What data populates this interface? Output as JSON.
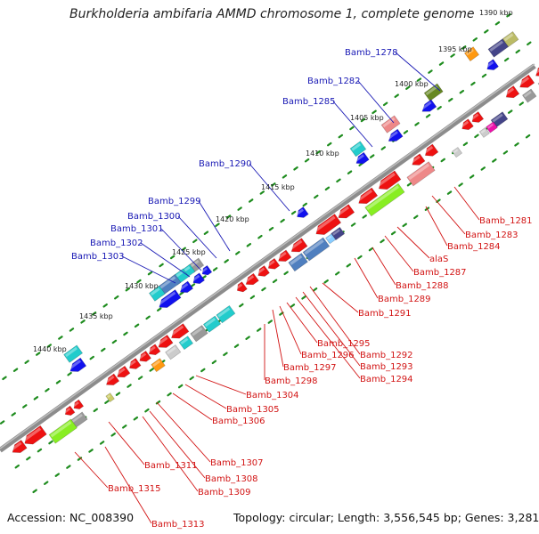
{
  "title": "Burkholderia ambifaria AMMD chromosome 1, complete genome",
  "footer": {
    "accession": "Accession: NC_008390",
    "topology": "Topology: circular; Length: 3,556,545 bp; Genes: 3,281"
  },
  "colors": {
    "backbone": "#8c8c8c",
    "tick": "#1e8c1e",
    "label_top": "#1818b4",
    "label_bottom": "#d21414",
    "gene_red": "#ee1111",
    "gene_blue": "#1111ee",
    "gene_cyan": "#22cccc",
    "gene_steel": "#4f7fbf",
    "gene_green": "#88ee22",
    "gene_pink": "#ee8888",
    "gene_gray": "#999999",
    "gene_navy": "#444488",
    "gene_olive": "#668822",
    "gene_orange": "#ff9911",
    "gene_magenta": "#ee11aa"
  },
  "kbp_labels": [
    "1390 kbp",
    "1395 kbp",
    "1400 kbp",
    "1405 kbp",
    "1410 kbp",
    "1415 kbp",
    "1420 kbp",
    "1425 kbp",
    "1430 kbp",
    "1435 kbp",
    "1440 kbp"
  ],
  "top_labels": [
    "Bamb_1278",
    "Bamb_1282",
    "Bamb_1285",
    "Bamb_1290",
    "Bamb_1299",
    "Bamb_1300",
    "Bamb_1301",
    "Bamb_1302",
    "Bamb_1303"
  ],
  "bottom_labels": [
    "Bamb_1281",
    "Bamb_1283",
    "Bamb_1284",
    "alaS",
    "Bamb_1287",
    "Bamb_1288",
    "Bamb_1289",
    "Bamb_1291",
    "Bamb_1292",
    "Bamb_1293",
    "Bamb_1294",
    "Bamb_1295",
    "Bamb_1296",
    "Bamb_1297",
    "Bamb_1298",
    "Bamb_1304",
    "Bamb_1305",
    "Bamb_1306",
    "Bamb_1307",
    "Bamb_1308",
    "Bamb_1309",
    "Bamb_1311",
    "Bamb_1313",
    "Bamb_1315"
  ]
}
